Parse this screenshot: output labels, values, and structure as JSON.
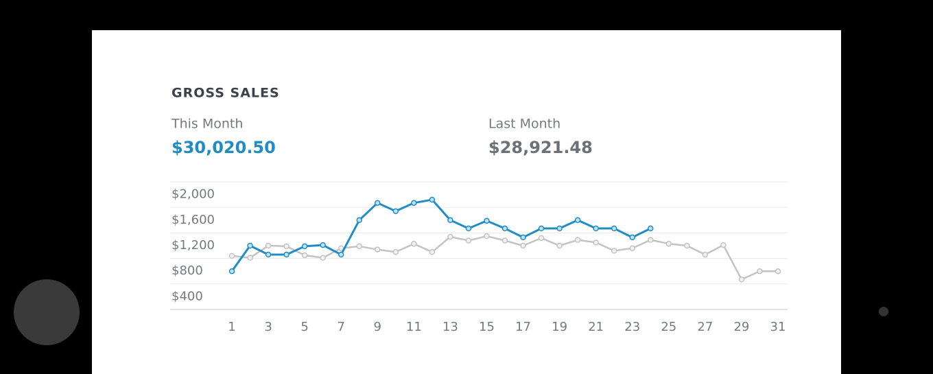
{
  "chart_data": {
    "type": "line",
    "title": "GROSS SALES",
    "categories": [
      "1",
      null,
      "3",
      null,
      "5",
      null,
      "7",
      null,
      "9",
      null,
      "11",
      null,
      "13",
      null,
      "15",
      null,
      "17",
      null,
      "19",
      null,
      "21",
      null,
      "23",
      null,
      "25",
      null,
      "27",
      null,
      "29",
      null,
      "31"
    ],
    "series": [
      {
        "name": "This Month",
        "total": "$30,020.50",
        "color": "#1f8dc4",
        "point_fill": "#bfe3f3",
        "values": [
          800,
          1200,
          1060,
          1060,
          1190,
          1210,
          1060,
          1600,
          1870,
          1740,
          1870,
          1920,
          1600,
          1470,
          1590,
          1470,
          1330,
          1470,
          1470,
          1600,
          1470,
          1470,
          1330,
          1470,
          null,
          null,
          null,
          null,
          null,
          null,
          null
        ]
      },
      {
        "name": "Last Month",
        "total": "$28,921.48",
        "color": "#c3c3c3",
        "point_fill": "#f2f2f2",
        "values": [
          1040,
          1010,
          1200,
          1190,
          1050,
          1010,
          1160,
          1190,
          1140,
          1100,
          1230,
          1100,
          1340,
          1280,
          1350,
          1280,
          1200,
          1320,
          1200,
          1290,
          1250,
          1120,
          1160,
          1290,
          1230,
          1200,
          1060,
          1210,
          670,
          800,
          800
        ]
      }
    ],
    "ylim": [
      200,
      2200
    ],
    "yticks": [
      {
        "value": 400,
        "label": "$400"
      },
      {
        "value": 800,
        "label": "$800"
      },
      {
        "value": 1200,
        "label": "$1,200"
      },
      {
        "value": 1600,
        "label": "$1,600"
      },
      {
        "value": 2000,
        "label": "$2,000"
      }
    ],
    "grid": true
  }
}
